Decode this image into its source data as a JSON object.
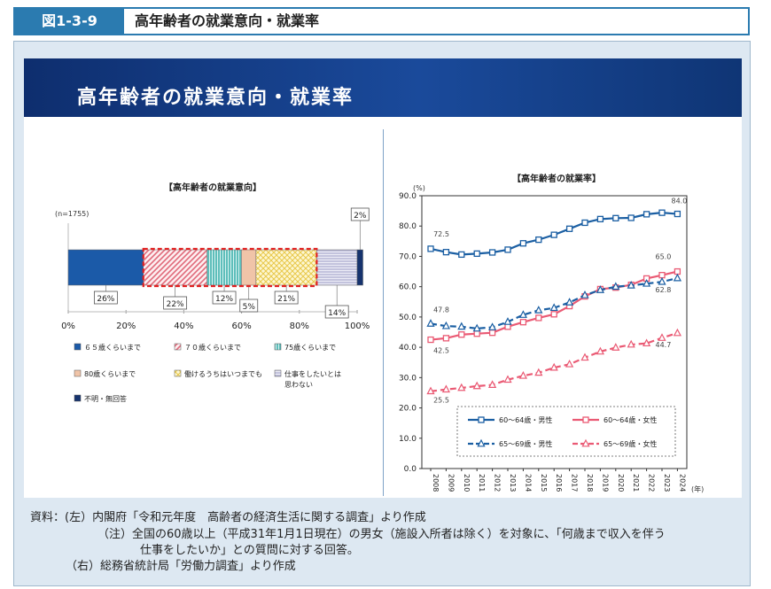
{
  "header": {
    "figure_label": "図1-3-9",
    "figure_title": "高年齢者の就業意向・就業率"
  },
  "banner": {
    "title": "高年齢者の就業意向・就業率"
  },
  "chart_data": [
    {
      "type": "bar",
      "orientation": "horizontal-stacked-100",
      "title": "【高年齢者の就業意向】",
      "sample_note": "(n=1755)",
      "xlim": [
        0,
        100
      ],
      "x_ticks": [
        "0%",
        "20%",
        "40%",
        "60%",
        "80%",
        "100%"
      ],
      "segments": [
        {
          "name": "６５歳くらいまで",
          "value": 26,
          "label": "26%",
          "color": "#1b5aa8",
          "pattern": "solid"
        },
        {
          "name": "７０歳くらいまで",
          "value": 22,
          "label": "22%",
          "color": "#e06a7a",
          "pattern": "diagonal"
        },
        {
          "name": "75歳くらいまで",
          "value": 12,
          "label": "12%",
          "color": "#2aa8a4",
          "pattern": "vertical"
        },
        {
          "name": "80歳くらいまで",
          "value": 5,
          "label": "5%",
          "color": "#f0c4a8",
          "pattern": "solid"
        },
        {
          "name": "働けるうちはいつまでも",
          "value": 21,
          "label": "21%",
          "color": "#f4e48c",
          "pattern": "crosshatch"
        },
        {
          "name": "仕事をしたいとは思わない",
          "value": 14,
          "label": "14%",
          "color": "#c3c3dc",
          "pattern": "horizontal"
        },
        {
          "name": "不明・無回答",
          "value": 2,
          "label": "2%",
          "color": "#16336e",
          "pattern": "solid"
        }
      ],
      "highlight": {
        "from": "７０歳くらいまで",
        "to": "働けるうちはいつまでも",
        "color": "#e02020"
      },
      "legend_rows": [
        [
          "６５歳くらいまで",
          "７０歳くらいまで",
          "75歳くらいまで"
        ],
        [
          "80歳くらいまで",
          "働けるうちはいつまでも",
          "仕事をしたいとは|思わない"
        ],
        [
          "不明・無回答"
        ]
      ]
    },
    {
      "type": "line",
      "title": "【高年齢者の就業率】",
      "ylabel": "(%)",
      "xlabel": "(年)",
      "ylim": [
        0,
        90
      ],
      "y_ticks": [
        "0.0",
        "10.0",
        "20.0",
        "30.0",
        "40.0",
        "50.0",
        "60.0",
        "70.0",
        "80.0",
        "90.0"
      ],
      "x": [
        "2008",
        "2009",
        "2010",
        "2011",
        "2012",
        "2013",
        "2014",
        "2015",
        "2016",
        "2017",
        "2018",
        "2019",
        "2020",
        "2021",
        "2022",
        "2023",
        "2024"
      ],
      "series": [
        {
          "name": "60～64歳・男性",
          "color": "#1b5fa3",
          "dash": "solid",
          "marker": "square",
          "values": [
            72.5,
            71.4,
            70.6,
            70.9,
            71.3,
            72.2,
            74.3,
            75.5,
            77.1,
            79.1,
            81.1,
            82.3,
            82.6,
            82.7,
            83.9,
            84.4,
            84.0
          ],
          "labels": {
            "2008": "72.5",
            "2024": "84.0"
          }
        },
        {
          "name": "60～64歳・女性",
          "color": "#ea5a74",
          "dash": "solid",
          "marker": "square",
          "values": [
            42.5,
            43.0,
            44.2,
            44.5,
            44.8,
            46.8,
            48.3,
            49.7,
            50.9,
            53.6,
            56.8,
            59.2,
            59.7,
            60.6,
            62.7,
            63.8,
            65.0
          ],
          "labels": {
            "2008": "42.5",
            "2024": "65.0"
          }
        },
        {
          "name": "65～69歳・男性",
          "color": "#1b5fa3",
          "dash": "dashed",
          "marker": "triangle",
          "values": [
            47.8,
            47.0,
            46.8,
            46.2,
            46.6,
            48.4,
            50.7,
            52.2,
            53.0,
            54.8,
            57.2,
            58.9,
            60.0,
            60.4,
            61.0,
            61.6,
            62.8
          ],
          "labels": {
            "2008": "47.8",
            "2024": "62.8"
          }
        },
        {
          "name": "65～69歳・女性",
          "color": "#ea5a74",
          "dash": "dashed",
          "marker": "triangle",
          "values": [
            25.5,
            26.1,
            26.6,
            27.2,
            27.6,
            29.3,
            30.6,
            31.6,
            33.3,
            34.4,
            36.6,
            38.6,
            39.9,
            40.9,
            41.3,
            43.1,
            44.7
          ],
          "labels": {
            "2008": "25.5",
            "2024": "44.7"
          }
        }
      ],
      "legend_position": "bottom-right-inside"
    }
  ],
  "sources": {
    "line1": "資料：(左）内閣府「令和元年度　高齢者の経済生活に関する調査」より作成",
    "line2": "（注）全国の60歳以上（平成31年1月1日現在）の男女（施設入所者は除く）を対象に、「何歳まで収入を伴う",
    "line3": "仕事をしたいか」との質問に対する回答。",
    "line4": "（右）総務省統計局「労働力調査」より作成"
  }
}
